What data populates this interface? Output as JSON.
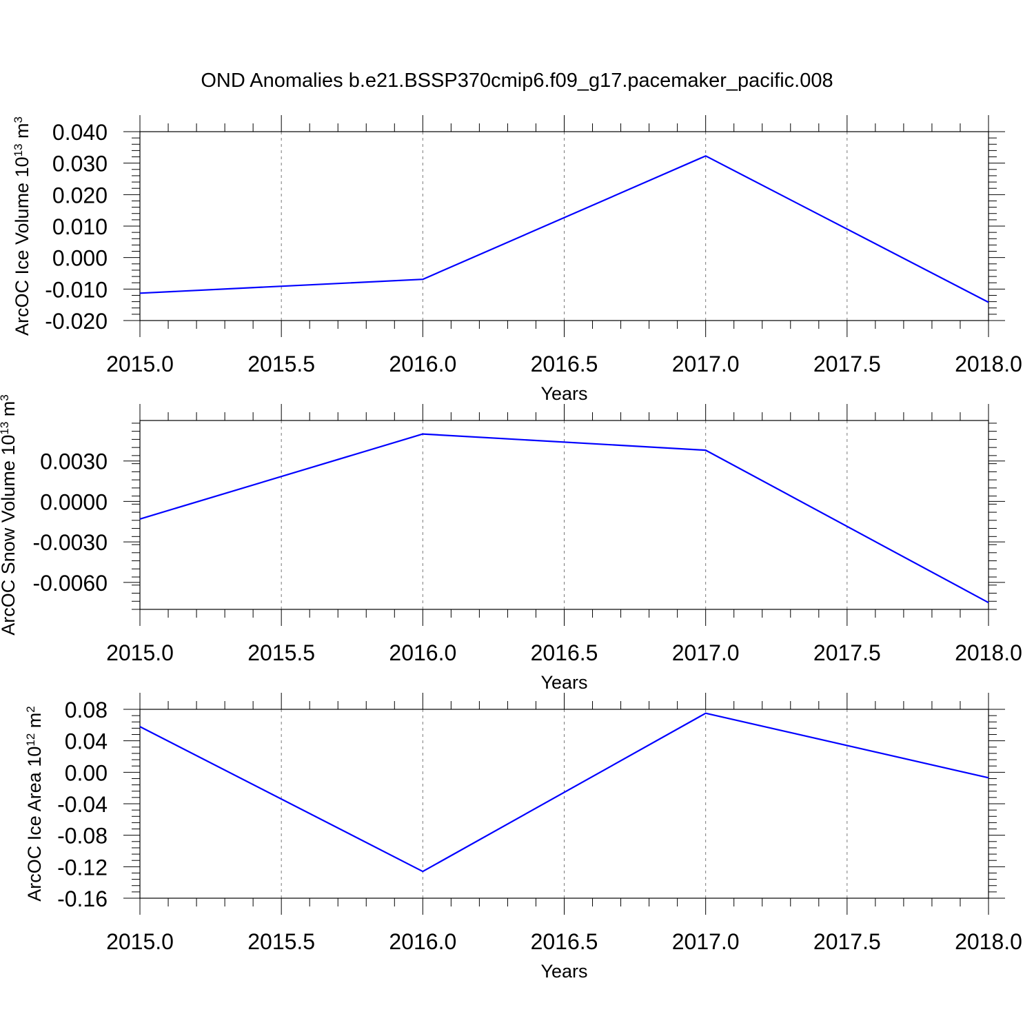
{
  "figure_title": "OND Anomalies b.e21.BSSP370cmip6.f09_g17.pacemaker_pacific.008",
  "chart_data": [
    {
      "type": "line",
      "xlabel": "Years",
      "ylabel_main": "ArcOC Ice Volume 10",
      "ylabel_exp": "13",
      "ylabel_unit": " m",
      "ylabel_unit_exp": "3",
      "xlim": [
        2015.0,
        2018.0
      ],
      "ylim": [
        -0.02,
        0.04
      ],
      "x_ticks": [
        "2015.0",
        "2015.5",
        "2016.0",
        "2016.5",
        "2017.0",
        "2017.5",
        "2018.0"
      ],
      "y_ticks": [
        "0.040",
        "0.030",
        "0.020",
        "0.010",
        "0.000",
        "-0.010",
        "-0.020"
      ],
      "grid": "dashed vertical",
      "series": [
        {
          "color": "#0000ff",
          "x": [
            2015,
            2016,
            2017,
            2018
          ],
          "values": [
            -0.0113,
            -0.0069,
            0.0323,
            -0.0142
          ]
        }
      ]
    },
    {
      "type": "line",
      "xlabel": "Years",
      "ylabel_main": "ArcOC Snow Volume 10",
      "ylabel_exp": "13",
      "ylabel_unit": " m",
      "ylabel_unit_exp": "3",
      "xlim": [
        2015.0,
        2018.0
      ],
      "ylim": [
        -0.008,
        0.006
      ],
      "x_ticks": [
        "2015.0",
        "2015.5",
        "2016.0",
        "2016.5",
        "2017.0",
        "2017.5",
        "2018.0"
      ],
      "y_ticks": [
        "0.0030",
        "0.0000",
        "-0.0030",
        "-0.0060"
      ],
      "grid": "dashed vertical",
      "series": [
        {
          "color": "#0000ff",
          "x": [
            2015,
            2016,
            2017,
            2018
          ],
          "values": [
            -0.0013,
            0.005,
            0.0038,
            -0.0075
          ]
        }
      ]
    },
    {
      "type": "line",
      "xlabel": "Years",
      "ylabel_main": "ArcOC Ice Area 10",
      "ylabel_exp": "12",
      "ylabel_unit": " m",
      "ylabel_unit_exp": "2",
      "xlim": [
        2015.0,
        2018.0
      ],
      "ylim": [
        -0.16,
        0.08
      ],
      "x_ticks": [
        "2015.0",
        "2015.5",
        "2016.0",
        "2016.5",
        "2017.0",
        "2017.5",
        "2018.0"
      ],
      "y_ticks": [
        "0.08",
        "0.04",
        "0.00",
        "-0.04",
        "-0.08",
        "-0.12",
        "-0.16"
      ],
      "grid": "dashed vertical",
      "series": [
        {
          "color": "#0000ff",
          "x": [
            2015,
            2016,
            2017,
            2018
          ],
          "values": [
            0.058,
            -0.126,
            0.075,
            -0.007
          ]
        }
      ]
    }
  ]
}
